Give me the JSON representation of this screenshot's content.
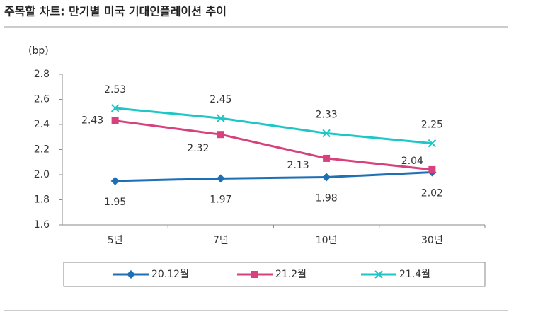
{
  "chart_data": {
    "type": "line",
    "title": "주목할 차트: 만기별 미국 기대인플레이션 추이",
    "y_label": "(bp)",
    "categories": [
      "5년",
      "7년",
      "10년",
      "30년"
    ],
    "series": [
      {
        "name": "20.12월",
        "color": "#1f6fb5",
        "marker": "diamond",
        "values": [
          1.95,
          1.97,
          1.98,
          2.02
        ]
      },
      {
        "name": "21.2월",
        "color": "#d6417e",
        "marker": "square",
        "values": [
          2.43,
          2.32,
          2.13,
          2.04
        ]
      },
      {
        "name": "21.4월",
        "color": "#1fc6c6",
        "marker": "x",
        "values": [
          2.53,
          2.45,
          2.33,
          2.25
        ]
      }
    ],
    "ylim": [
      1.6,
      2.8
    ],
    "yticks": [
      1.6,
      1.8,
      {
        "value": 2,
        "label": "2.0"
      },
      2.2,
      2.4,
      2.6,
      2.8
    ],
    "legend": "bottom"
  }
}
